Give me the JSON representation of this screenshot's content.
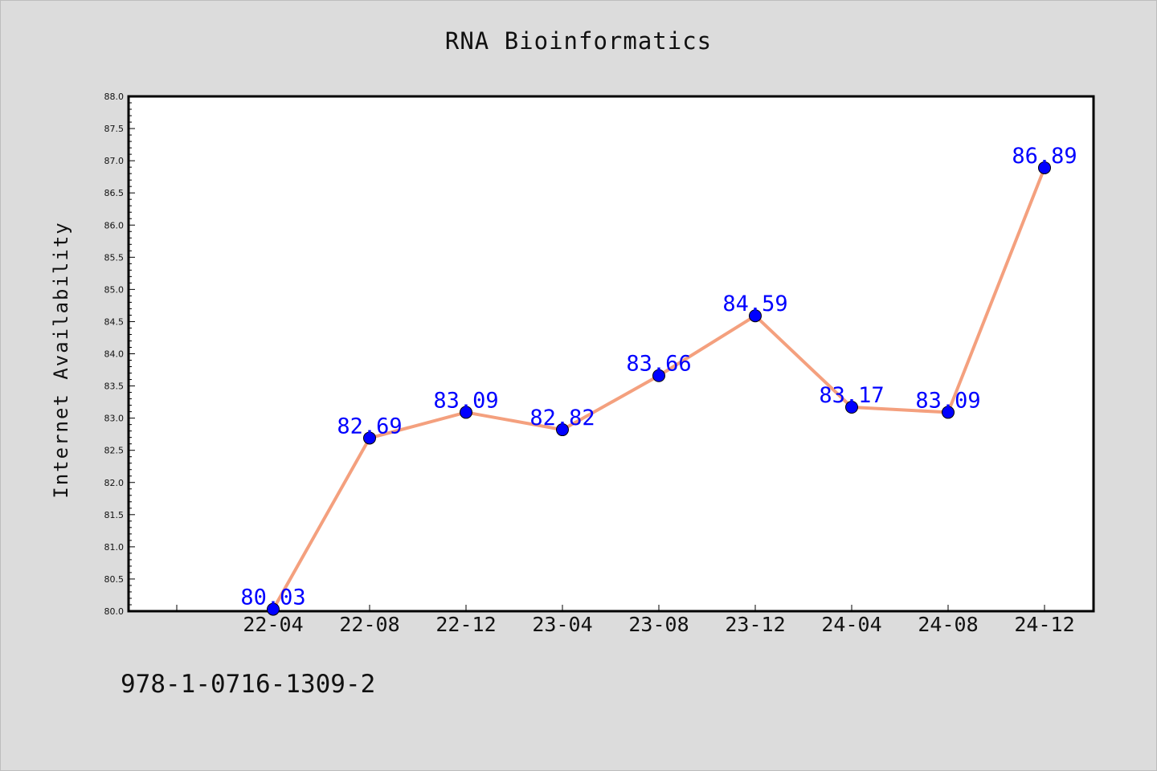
{
  "page": {
    "background": "#dcdcdc",
    "footer_code": "978-1-0716-1309-2"
  },
  "chart_data": {
    "type": "line",
    "title": "RNA Bioinformatics",
    "xlabel": "",
    "ylabel": "Internet Availability",
    "categories": [
      "22-04",
      "22-08",
      "22-12",
      "23-04",
      "23-08",
      "23-12",
      "24-04",
      "24-08",
      "24-12"
    ],
    "series": [
      {
        "values": [
          80.03,
          82.69,
          83.09,
          82.82,
          83.66,
          84.59,
          83.17,
          83.09,
          86.89
        ],
        "line_color": "#f4a07e",
        "marker_color": "#0000ff"
      }
    ],
    "data_labels": [
      "80.03",
      "82.69",
      "83.09",
      "82.82",
      "83.66",
      "84.59",
      "83.17",
      "83.09",
      "86.89"
    ],
    "ylim": [
      80.0,
      88.0
    ],
    "y_ticks": [
      "80.0",
      "80.5",
      "81.0",
      "81.5",
      "82.0",
      "82.5",
      "83.0",
      "83.5",
      "84.0",
      "84.5",
      "85.0",
      "85.5",
      "86.0",
      "86.5",
      "87.0",
      "87.5",
      "88.0"
    ],
    "grid": false,
    "legend": "none"
  }
}
